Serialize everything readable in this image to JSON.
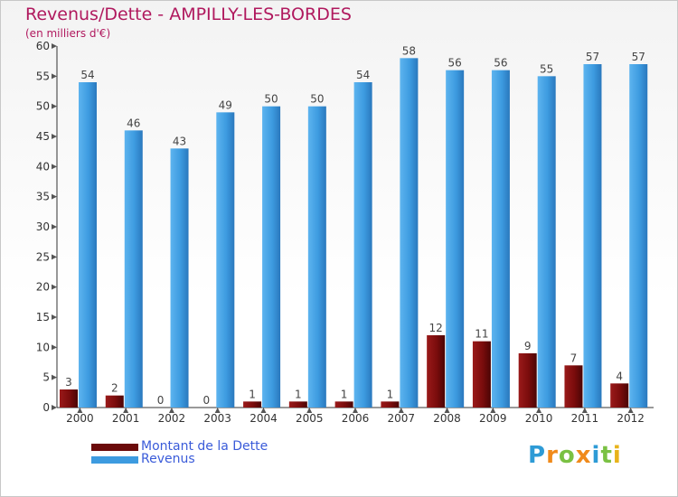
{
  "title": "Revenus/Dette - AMPILLY-LES-BORDES",
  "subtitle": "(en milliers d'€)",
  "brand": "Proxiti",
  "colors": {
    "debt": "#7a0c0c",
    "revenue": "#3d9be0",
    "title": "#b0195e",
    "legend_text": "#3a5bd9"
  },
  "legend": [
    {
      "label": "Montant de la Dette"
    },
    {
      "label": "Revenus"
    }
  ],
  "chart_data": {
    "type": "bar",
    "categories": [
      "2000",
      "2001",
      "2002",
      "2003",
      "2004",
      "2005",
      "2006",
      "2007",
      "2008",
      "2009",
      "2010",
      "2011",
      "2012"
    ],
    "series": [
      {
        "name": "Montant de la Dette",
        "values": [
          3,
          2,
          0,
          0,
          1,
          1,
          1,
          1,
          12,
          11,
          9,
          7,
          4
        ]
      },
      {
        "name": "Revenus",
        "values": [
          54,
          46,
          43,
          49,
          50,
          50,
          54,
          58,
          56,
          56,
          55,
          57,
          57
        ]
      }
    ],
    "yticks": [
      "0",
      "5",
      "10",
      "15",
      "20",
      "25",
      "30",
      "35",
      "40",
      "45",
      "50",
      "55",
      "60"
    ],
    "ylim": [
      0,
      60
    ],
    "grid": false,
    "legend_position": "bottom-left"
  }
}
